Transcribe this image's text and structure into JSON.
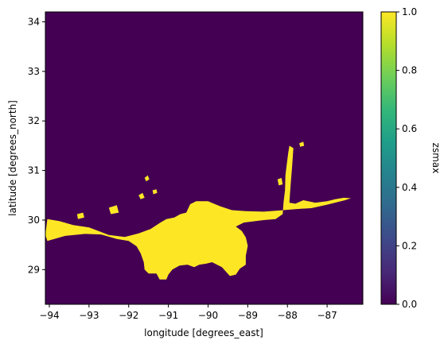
{
  "chart_data": {
    "type": "heatmap",
    "title": "",
    "xlabel": "longitude [degrees_east]",
    "ylabel": "latitude [degrees_north]",
    "colorbar_label": "zsmax",
    "xlim": [
      -94.1,
      -86.1
    ],
    "ylim": [
      28.3,
      34.2
    ],
    "xticks": [
      -94,
      -93,
      -92,
      -91,
      -90,
      -89,
      -88,
      -87
    ],
    "xtick_labels": [
      "−94",
      "−93",
      "−92",
      "−91",
      "−90",
      "−89",
      "−88",
      "−87"
    ],
    "yticks": [
      29,
      30,
      31,
      32,
      33,
      34
    ],
    "ytick_labels": [
      "29",
      "30",
      "31",
      "32",
      "33",
      "34"
    ],
    "colorbar_range": [
      0.0,
      1.0
    ],
    "colorbar_ticks": [
      0.0,
      0.2,
      0.4,
      0.6,
      0.8,
      1.0
    ],
    "colorbar_tick_labels": [
      "0.0",
      "0.2",
      "0.4",
      "0.6",
      "0.8",
      "1.0"
    ],
    "colormap": "viridis",
    "colors": {
      "value_0": "#440154",
      "value_1": "#fde725",
      "viridis_stops": [
        "#440154",
        "#482878",
        "#3e4989",
        "#31688e",
        "#26828e",
        "#1f9e89",
        "#35b779",
        "#6ece58",
        "#b5de2b",
        "#fde725"
      ]
    },
    "grid": false,
    "flooded_regions": [
      {
        "name": "main-flooded-area",
        "value": 1,
        "outline_lon_lat": [
          [
            -94.05,
            29.58
          ],
          [
            -93.6,
            29.68
          ],
          [
            -93.1,
            29.72
          ],
          [
            -92.7,
            29.71
          ],
          [
            -92.3,
            29.62
          ],
          [
            -92.0,
            29.58
          ],
          [
            -91.8,
            29.47
          ],
          [
            -91.7,
            29.33
          ],
          [
            -91.62,
            29.15
          ],
          [
            -91.6,
            29.0
          ],
          [
            -91.5,
            28.92
          ],
          [
            -91.3,
            28.92
          ],
          [
            -91.22,
            28.8
          ],
          [
            -91.05,
            28.8
          ],
          [
            -91.0,
            28.9
          ],
          [
            -90.9,
            29.0
          ],
          [
            -90.72,
            29.08
          ],
          [
            -90.52,
            29.1
          ],
          [
            -90.35,
            29.05
          ],
          [
            -90.22,
            29.1
          ],
          [
            -90.05,
            29.12
          ],
          [
            -89.9,
            29.15
          ],
          [
            -89.65,
            29.05
          ],
          [
            -89.45,
            28.87
          ],
          [
            -89.3,
            28.9
          ],
          [
            -89.2,
            29.02
          ],
          [
            -89.05,
            29.1
          ],
          [
            -89.05,
            29.28
          ],
          [
            -89.0,
            29.48
          ],
          [
            -89.05,
            29.65
          ],
          [
            -89.15,
            29.78
          ],
          [
            -89.3,
            29.87
          ],
          [
            -89.1,
            29.95
          ],
          [
            -88.6,
            30.0
          ],
          [
            -88.3,
            30.02
          ],
          [
            -88.12,
            30.12
          ],
          [
            -88.1,
            30.35
          ],
          [
            -88.06,
            30.6
          ],
          [
            -88.05,
            30.9
          ],
          [
            -88.02,
            31.1
          ],
          [
            -87.98,
            31.35
          ],
          [
            -87.95,
            31.5
          ],
          [
            -87.85,
            31.45
          ],
          [
            -87.88,
            31.1
          ],
          [
            -87.92,
            30.7
          ],
          [
            -87.95,
            30.35
          ],
          [
            -87.8,
            30.33
          ],
          [
            -87.6,
            30.4
          ],
          [
            -87.3,
            30.35
          ],
          [
            -87.0,
            30.38
          ],
          [
            -86.8,
            30.42
          ],
          [
            -86.58,
            30.45
          ],
          [
            -86.4,
            30.44
          ],
          [
            -86.55,
            30.4
          ],
          [
            -87.0,
            30.31
          ],
          [
            -87.4,
            30.24
          ],
          [
            -87.8,
            30.22
          ],
          [
            -88.1,
            30.2
          ],
          [
            -88.6,
            30.17
          ],
          [
            -89.05,
            30.18
          ],
          [
            -89.4,
            30.2
          ],
          [
            -89.7,
            30.28
          ],
          [
            -90.0,
            30.38
          ],
          [
            -90.3,
            30.38
          ],
          [
            -90.45,
            30.32
          ],
          [
            -90.55,
            30.15
          ],
          [
            -90.7,
            30.12
          ],
          [
            -90.85,
            30.05
          ],
          [
            -91.05,
            30.02
          ],
          [
            -91.2,
            29.95
          ],
          [
            -91.45,
            29.82
          ],
          [
            -91.75,
            29.73
          ],
          [
            -92.1,
            29.66
          ],
          [
            -92.5,
            29.7
          ],
          [
            -93.0,
            29.85
          ],
          [
            -93.4,
            29.9
          ],
          [
            -93.75,
            29.98
          ],
          [
            -94.05,
            30.02
          ],
          [
            -94.1,
            29.7
          ]
        ]
      },
      {
        "name": "islet-1",
        "value": 1,
        "outline_lon_lat": [
          [
            -91.6,
            30.85
          ],
          [
            -91.52,
            30.9
          ],
          [
            -91.48,
            30.82
          ],
          [
            -91.56,
            30.78
          ]
        ]
      },
      {
        "name": "islet-2",
        "value": 1,
        "outline_lon_lat": [
          [
            -91.4,
            30.6
          ],
          [
            -91.3,
            30.62
          ],
          [
            -91.28,
            30.55
          ],
          [
            -91.38,
            30.52
          ]
        ]
      },
      {
        "name": "islet-3",
        "value": 1,
        "outline_lon_lat": [
          [
            -91.75,
            30.5
          ],
          [
            -91.65,
            30.55
          ],
          [
            -91.6,
            30.45
          ],
          [
            -91.7,
            30.42
          ]
        ]
      },
      {
        "name": "islet-4",
        "value": 1,
        "outline_lon_lat": [
          [
            -92.5,
            30.25
          ],
          [
            -92.3,
            30.3
          ],
          [
            -92.25,
            30.15
          ],
          [
            -92.45,
            30.12
          ]
        ]
      },
      {
        "name": "islet-5",
        "value": 1,
        "outline_lon_lat": [
          [
            -93.3,
            30.12
          ],
          [
            -93.15,
            30.15
          ],
          [
            -93.12,
            30.05
          ],
          [
            -93.28,
            30.02
          ]
        ]
      },
      {
        "name": "islet-6",
        "value": 1,
        "outline_lon_lat": [
          [
            -88.25,
            30.82
          ],
          [
            -88.15,
            30.85
          ],
          [
            -88.12,
            30.72
          ],
          [
            -88.22,
            30.7
          ]
        ]
      },
      {
        "name": "islet-7",
        "value": 1,
        "outline_lon_lat": [
          [
            -87.7,
            31.55
          ],
          [
            -87.6,
            31.58
          ],
          [
            -87.58,
            31.5
          ],
          [
            -87.68,
            31.48
          ]
        ]
      }
    ]
  }
}
